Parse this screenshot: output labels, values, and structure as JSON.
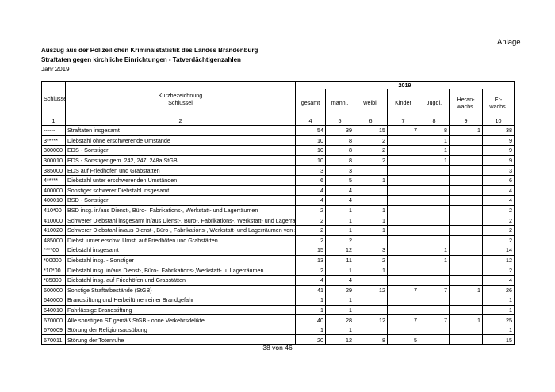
{
  "header": {
    "note": "Anlage",
    "title_lines": [
      "Auszug aus der Polizeilichen Kriminalstatistik des Landes Brandenburg",
      "Straftaten gegen kirchliche Einrichtungen - Tatverdächtigenzahlen"
    ],
    "subtitle": "Jahr 2019"
  },
  "table": {
    "year": "2019",
    "column_heads": [
      [
        "Schlüssel"
      ],
      [
        "Kurzbezeichnung",
        "Schlüssel"
      ],
      [
        "gesamt"
      ],
      [
        "männl."
      ],
      [
        "weibl."
      ],
      [
        "Kinder"
      ],
      [
        "Jugdl."
      ],
      [
        "Heran-",
        "wachs."
      ],
      [
        "Er-",
        "wachs."
      ]
    ],
    "column_numbers": [
      1,
      2,
      4,
      5,
      6,
      7,
      8,
      9,
      10
    ],
    "rows": [
      [
        "------",
        "Straftaten insgesamt",
        54,
        39,
        15,
        7,
        8,
        1,
        38
      ],
      [
        "3*****",
        "Diebstahl ohne erschwerende Umstände",
        10,
        8,
        2,
        null,
        1,
        null,
        9
      ],
      [
        "300000",
        "EDS - Sonstiger",
        10,
        8,
        2,
        null,
        1,
        null,
        9
      ],
      [
        "300010",
        "EDS - Sonstiger gem. 242, 247, 248a StGB",
        10,
        8,
        2,
        null,
        1,
        null,
        9
      ],
      [
        "385000",
        "EDS auf Friedhöfen und Grabstätten",
        3,
        3,
        null,
        null,
        null,
        null,
        3
      ],
      [
        "4*****",
        "Diebstahl unter erschwerenden Umständen",
        6,
        5,
        1,
        null,
        null,
        null,
        6
      ],
      [
        "400000",
        "Sonstiger schwerer Diebstahl insgesamt",
        4,
        4,
        null,
        null,
        null,
        null,
        4
      ],
      [
        "400010",
        "BSD - Sonstiger",
        4,
        4,
        null,
        null,
        null,
        null,
        4
      ],
      [
        "410*00",
        "BSD insg.  in/aus Dienst-, Büro-, Fabrikations-, Werkstatt- und Lagerräumen",
        2,
        1,
        1,
        null,
        null,
        null,
        2
      ],
      [
        "410000",
        "Schwerer Diebstahl insgesamt in/aus Dienst-, Büro-, Fabrikations-, Werkstatt- und Lagerräume",
        2,
        1,
        1,
        null,
        null,
        null,
        2
      ],
      [
        "410020",
        "Schwerer Diebstahl in/aus Dienst-, Büro-, Fabrikations-, Werkstatt- und Lagerräumen von sons",
        2,
        1,
        1,
        null,
        null,
        null,
        2
      ],
      [
        "485000",
        "Diebst. unter erschw. Umst. auf Friedhöfen und Grabstätten",
        2,
        2,
        null,
        null,
        null,
        null,
        2
      ],
      [
        "****00",
        "Diebstahl insgesamt",
        15,
        12,
        3,
        null,
        1,
        null,
        14
      ],
      [
        "*00000",
        "Diebstahl insg. - Sonstiger",
        13,
        11,
        2,
        null,
        1,
        null,
        12
      ],
      [
        "*10*00",
        "Diebstahl insg. in/aus Dienst-, Büro-, Fabrikations-,Werkstatt- u. Lagerräumen",
        2,
        1,
        1,
        null,
        null,
        null,
        2
      ],
      [
        "*85000",
        "Diebstahl insg. auf Friedhöfen und Grabstätten",
        4,
        4,
        null,
        null,
        null,
        null,
        4
      ],
      [
        "600000",
        "Sonstige Straftatbestände (StGB)",
        41,
        29,
        12,
        7,
        7,
        1,
        26
      ],
      [
        "640000",
        "Brandstiftung und Herbeiführen einer Brandgefahr",
        1,
        1,
        null,
        null,
        null,
        null,
        1
      ],
      [
        "640010",
        "Fahrlässige Brandstiftung",
        1,
        1,
        null,
        null,
        null,
        null,
        1
      ],
      [
        "670000",
        "Alle sonstigen ST gemäß StGB - ohne Verkehrsdelikte",
        40,
        28,
        12,
        7,
        7,
        1,
        25
      ],
      [
        "670009",
        "Störung der Religionsausübung",
        1,
        1,
        null,
        null,
        null,
        null,
        1
      ],
      [
        "670011",
        "Störung der Totenruhe",
        20,
        12,
        8,
        5,
        null,
        null,
        15
      ]
    ]
  },
  "footer": "38 von 46"
}
